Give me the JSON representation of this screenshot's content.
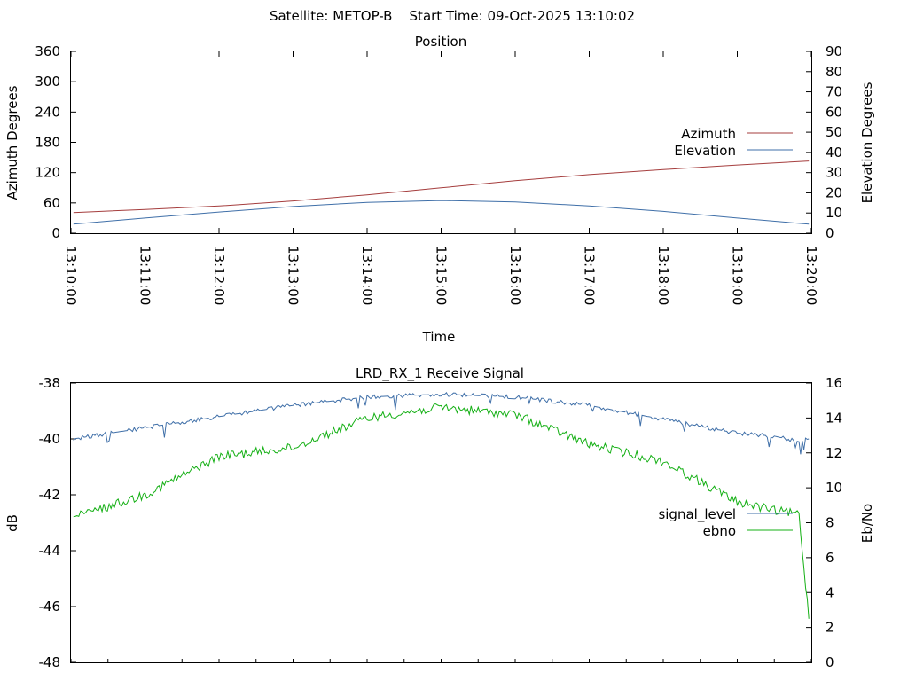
{
  "header": {
    "title": "Satellite: METOP-B    Start Time: 09-Oct-2025 13:10:02"
  },
  "colors": {
    "azimuth": "#a53d3d",
    "elevation": "#3f6fa8",
    "signal_level": "#3f6fa8",
    "ebno": "#15b015",
    "frame": "#000000"
  },
  "chart_data": [
    {
      "type": "line",
      "title": "Position",
      "xlabel": "Time",
      "ylabel": "Azimuth Degrees",
      "y2label": "Elevation Degrees",
      "xlim": [
        "13:10:00",
        "13:20:00"
      ],
      "ylim": [
        0,
        360
      ],
      "y2lim": [
        0,
        90
      ],
      "x_ticks": [
        "13:10:00",
        "13:11:00",
        "13:12:00",
        "13:13:00",
        "13:14:00",
        "13:15:00",
        "13:16:00",
        "13:17:00",
        "13:18:00",
        "13:19:00",
        "13:20:00"
      ],
      "y_ticks": [
        0,
        60,
        120,
        180,
        240,
        300,
        360
      ],
      "y2_ticks": [
        0,
        10,
        20,
        30,
        40,
        50,
        60,
        70,
        80,
        90
      ],
      "grid": false,
      "legend_position": "right",
      "x": [
        "13:10:02",
        "13:11:00",
        "13:12:00",
        "13:13:00",
        "13:14:00",
        "13:15:00",
        "13:16:00",
        "13:17:00",
        "13:18:00",
        "13:19:00",
        "13:19:58"
      ],
      "series": [
        {
          "name": "Azimuth",
          "axis": "y",
          "color_key": "azimuth",
          "values": [
            41,
            47,
            54,
            64,
            76,
            90,
            104,
            116,
            126,
            135,
            143
          ]
        },
        {
          "name": "Elevation",
          "axis": "y2",
          "color_key": "elevation",
          "values": [
            4.5,
            7.5,
            10.5,
            13.2,
            15.3,
            16.2,
            15.5,
            13.5,
            10.8,
            7.5,
            4.5
          ]
        }
      ]
    },
    {
      "type": "line",
      "title": "LRD_RX_1 Receive Signal",
      "ylabel": "dB",
      "y2label": "Eb/No",
      "xlim": [
        "13:10:00",
        "13:20:00"
      ],
      "ylim": [
        -48,
        -38
      ],
      "y2lim": [
        0,
        16
      ],
      "y_ticks": [
        -48,
        -46,
        -44,
        -42,
        -40,
        -38
      ],
      "y2_ticks": [
        0,
        2,
        4,
        6,
        8,
        10,
        12,
        14,
        16
      ],
      "grid": false,
      "legend_position": "right",
      "x": [
        "13:10:02",
        "13:11:00",
        "13:12:00",
        "13:13:00",
        "13:14:00",
        "13:15:00",
        "13:16:00",
        "13:17:00",
        "13:18:00",
        "13:19:00",
        "13:19:30",
        "13:19:50",
        "13:19:58"
      ],
      "series": [
        {
          "name": "signal_level",
          "axis": "y",
          "color_key": "signal_level",
          "values": [
            -40.0,
            -39.6,
            -39.2,
            -38.8,
            -38.5,
            -38.4,
            -38.5,
            -38.8,
            -39.3,
            -39.8,
            -39.9,
            -40.1,
            -40.0
          ]
        },
        {
          "name": "ebno",
          "axis": "y2",
          "color_key": "ebno",
          "values": [
            8.3,
            9.6,
            11.8,
            12.3,
            14.0,
            14.6,
            14.2,
            12.5,
            11.5,
            9.2,
            8.7,
            8.5,
            2.5
          ]
        }
      ]
    }
  ]
}
